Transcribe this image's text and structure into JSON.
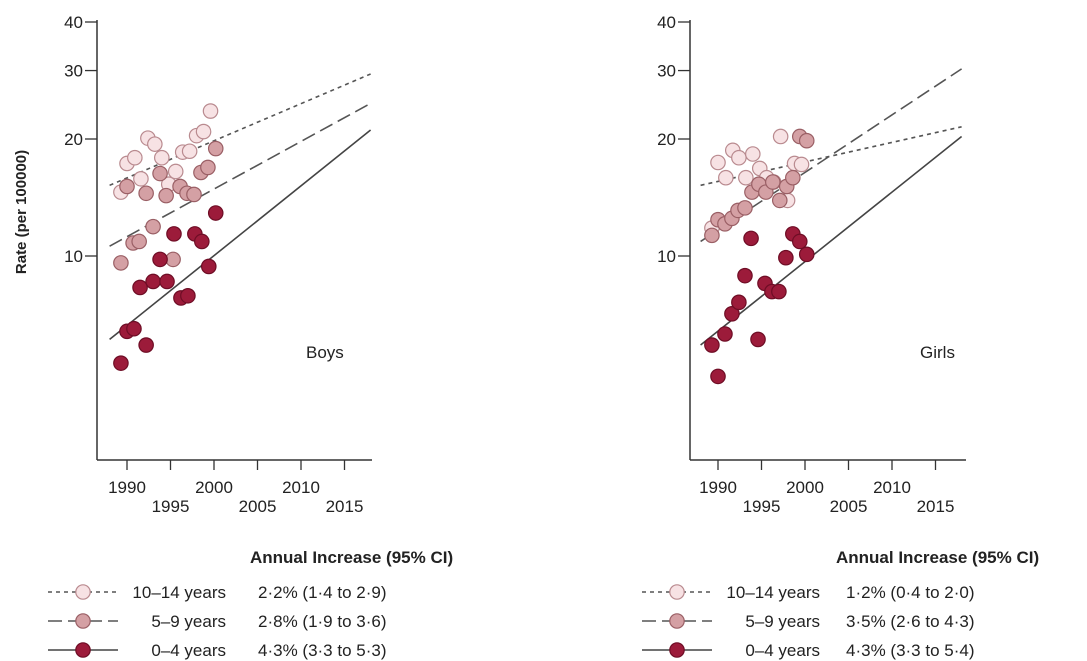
{
  "ylabel": "Rate (per 100000)",
  "legend_header": "Annual Increase (95% CI)",
  "colors": {
    "age_10_14": "#f7e2e4",
    "age_5_9": "#d4a0a4",
    "age_0_4": "#9c1b3a",
    "stroke_10_14": "#b98a8f",
    "stroke_5_9": "#9a5f65",
    "stroke_0_4": "#6e0d25",
    "axis": "#333333"
  },
  "chart_data": [
    {
      "type": "scatter",
      "panel_label": "Boys",
      "yscale": "log",
      "ylim": [
        4,
        40
      ],
      "xlim": [
        1988,
        2018
      ],
      "y_ticks": [
        10,
        20,
        30,
        40
      ],
      "x_ticks_upper": [
        1990,
        2000,
        2010
      ],
      "x_ticks_lower": [
        1995,
        2005,
        2015
      ],
      "series": [
        {
          "name": "10–14 years",
          "stat": "2·2% (1·4 to 2·9)",
          "trend": [
            [
              1988,
              15.2
            ],
            [
              2018,
              29.4
            ]
          ],
          "points": [
            [
              1989.3,
              14.6
            ],
            [
              1990,
              17.3
            ],
            [
              1990.9,
              17.9
            ],
            [
              1991.6,
              15.8
            ],
            [
              1992.4,
              20.1
            ],
            [
              1993.2,
              19.4
            ],
            [
              1994,
              17.9
            ],
            [
              1994.8,
              15.3
            ],
            [
              1995.6,
              16.5
            ],
            [
              1996.4,
              18.5
            ],
            [
              1997.2,
              18.6
            ],
            [
              1998,
              20.4
            ],
            [
              1998.8,
              20.9
            ],
            [
              1999.6,
              23.6
            ]
          ]
        },
        {
          "name": "5–9 years",
          "stat": "2·8% (1·9 to 3·6)",
          "trend": [
            [
              1988,
              10.6
            ],
            [
              2018,
              24.7
            ]
          ],
          "points": [
            [
              1989.3,
              9.6
            ],
            [
              1990,
              15.1
            ],
            [
              1990.7,
              10.8
            ],
            [
              1991.4,
              10.9
            ],
            [
              1992.2,
              14.5
            ],
            [
              1993,
              11.9
            ],
            [
              1993.8,
              16.3
            ],
            [
              1994.5,
              14.3
            ],
            [
              1995.3,
              9.8
            ],
            [
              1996.1,
              15.1
            ],
            [
              1996.9,
              14.5
            ],
            [
              1997.7,
              14.4
            ],
            [
              1998.5,
              16.4
            ],
            [
              1999.3,
              16.9
            ],
            [
              2000.2,
              18.9
            ]
          ]
        },
        {
          "name": "0–4 years",
          "stat": "4·3% (3·3 to 5·3)",
          "trend": [
            [
              1988,
              6.1
            ],
            [
              2018,
              21.1
            ]
          ],
          "points": [
            [
              1989.3,
              5.3
            ],
            [
              1990,
              6.4
            ],
            [
              1990.8,
              6.5
            ],
            [
              1991.5,
              8.3
            ],
            [
              1992.2,
              5.9
            ],
            [
              1993,
              8.6
            ],
            [
              1993.8,
              9.8
            ],
            [
              1994.6,
              8.6
            ],
            [
              1995.4,
              11.4
            ],
            [
              1996.2,
              7.8
            ],
            [
              1997,
              7.9
            ],
            [
              1997.8,
              11.4
            ],
            [
              1998.6,
              10.9
            ],
            [
              1999.4,
              9.4
            ],
            [
              2000.2,
              12.9
            ]
          ]
        }
      ]
    },
    {
      "type": "scatter",
      "panel_label": "Girls",
      "yscale": "log",
      "ylim": [
        4,
        40
      ],
      "xlim": [
        1988,
        2018
      ],
      "y_ticks": [
        10,
        20,
        30,
        40
      ],
      "x_ticks_upper": [
        1990,
        2000,
        2010
      ],
      "x_ticks_lower": [
        1995,
        2005,
        2015
      ],
      "series": [
        {
          "name": "10–14 years",
          "stat": "1·2% (0·4 to 2·0)",
          "trend": [
            [
              1988,
              15.2
            ],
            [
              2018,
              21.5
            ]
          ],
          "points": [
            [
              1989.3,
              11.8
            ],
            [
              1990,
              17.4
            ],
            [
              1990.9,
              15.9
            ],
            [
              1991.7,
              18.7
            ],
            [
              1992.4,
              17.9
            ],
            [
              1993.2,
              15.9
            ],
            [
              1994,
              18.3
            ],
            [
              1994.8,
              16.8
            ],
            [
              1995.6,
              15.9
            ],
            [
              1996.4,
              15.5
            ],
            [
              1997.2,
              20.3
            ],
            [
              1998,
              13.9
            ],
            [
              1998.8,
              17.3
            ],
            [
              1999.6,
              17.2
            ]
          ]
        },
        {
          "name": "5–9 years",
          "stat": "3·5% (2·6 to 4·3)",
          "trend": [
            [
              1988,
              10.9
            ],
            [
              2018,
              30.3
            ]
          ],
          "points": [
            [
              1989.3,
              11.3
            ],
            [
              1990,
              12.4
            ],
            [
              1990.8,
              12.1
            ],
            [
              1991.6,
              12.5
            ],
            [
              1992.3,
              13.1
            ],
            [
              1993.1,
              13.3
            ],
            [
              1993.9,
              14.6
            ],
            [
              1994.7,
              15.3
            ],
            [
              1995.5,
              14.6
            ],
            [
              1996.3,
              15.5
            ],
            [
              1997.1,
              13.9
            ],
            [
              1997.9,
              15.1
            ],
            [
              1998.6,
              15.9
            ],
            [
              1999.4,
              20.3
            ],
            [
              2000.2,
              19.8
            ]
          ]
        },
        {
          "name": "0–4 years",
          "stat": "4·3% (3·3 to 5·4)",
          "trend": [
            [
              1988,
              5.9
            ],
            [
              2018,
              20.3
            ]
          ],
          "points": [
            [
              1989.3,
              5.9
            ],
            [
              1990,
              4.9
            ],
            [
              1990.8,
              6.3
            ],
            [
              1991.6,
              7.1
            ],
            [
              1992.4,
              7.6
            ],
            [
              1993.1,
              8.9
            ],
            [
              1993.8,
              11.1
            ],
            [
              1994.6,
              6.1
            ],
            [
              1995.4,
              8.5
            ],
            [
              1996.2,
              8.1
            ],
            [
              1997,
              8.1
            ],
            [
              1997.8,
              9.9
            ],
            [
              1998.6,
              11.4
            ],
            [
              1999.4,
              10.9
            ],
            [
              2000.2,
              10.1
            ]
          ]
        }
      ]
    }
  ]
}
